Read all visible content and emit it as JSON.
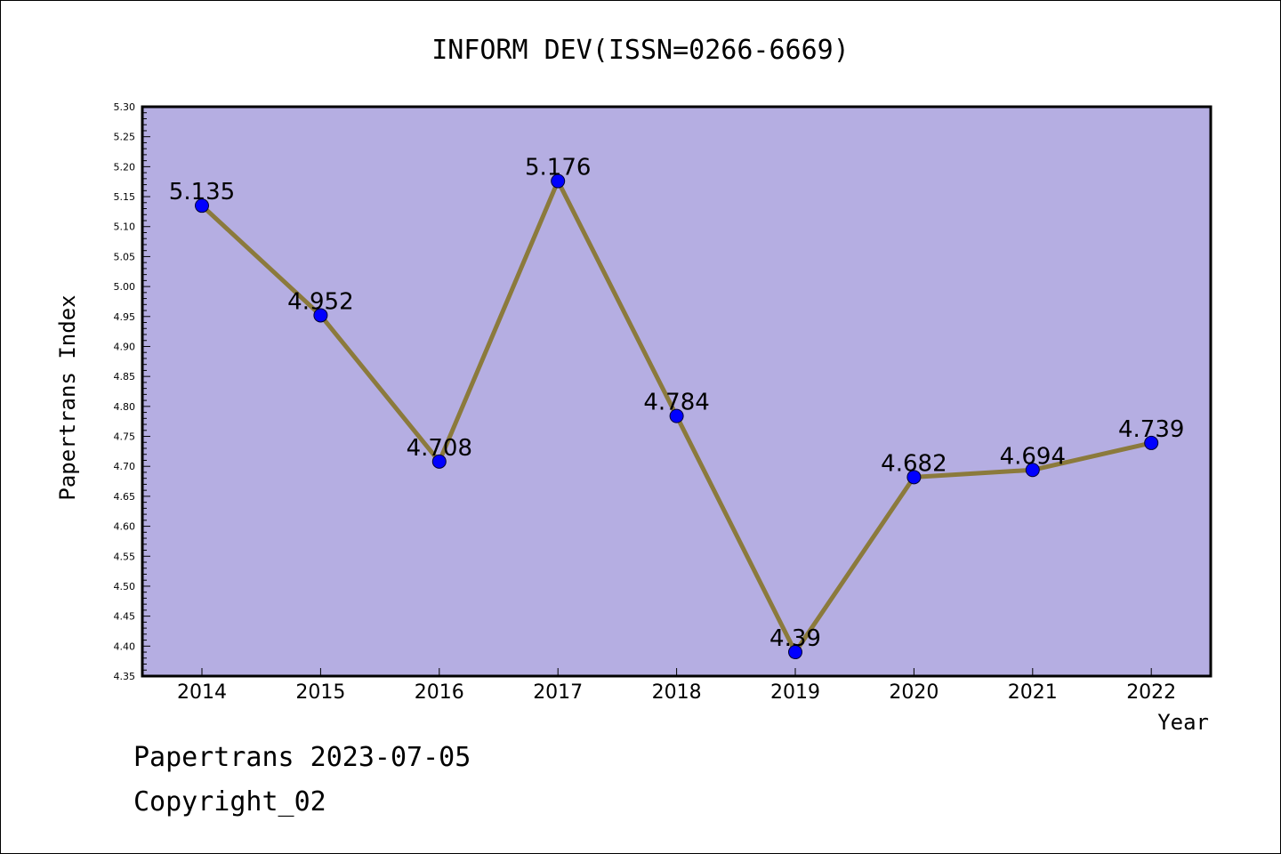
{
  "chart_data": {
    "type": "line",
    "title": "INFORM DEV(ISSN=0266-6669)",
    "xlabel": "Year",
    "ylabel": "Papertrans Index",
    "categories": [
      "2014",
      "2015",
      "2016",
      "2017",
      "2018",
      "2019",
      "2020",
      "2021",
      "2022"
    ],
    "series": [
      {
        "values": [
          5.135,
          4.952,
          4.708,
          5.176,
          4.784,
          4.39,
          4.682,
          4.694,
          4.739
        ],
        "labels": [
          "5.135",
          "4.952",
          "4.708",
          "5.176",
          "4.784",
          "4.39",
          "4.682",
          "4.694",
          "4.739"
        ]
      }
    ],
    "ylim": [
      4.35,
      5.3
    ],
    "ytick_step": 0.05,
    "grid": false,
    "legend": "none",
    "colors": {
      "plot_background": "#b5aee2",
      "line": "#8b7a3c",
      "marker": "#0000ff",
      "axis": "#000000"
    }
  },
  "footer": {
    "date_text": "Papertrans 2023-07-05",
    "copyright_text": "Copyright_02"
  }
}
